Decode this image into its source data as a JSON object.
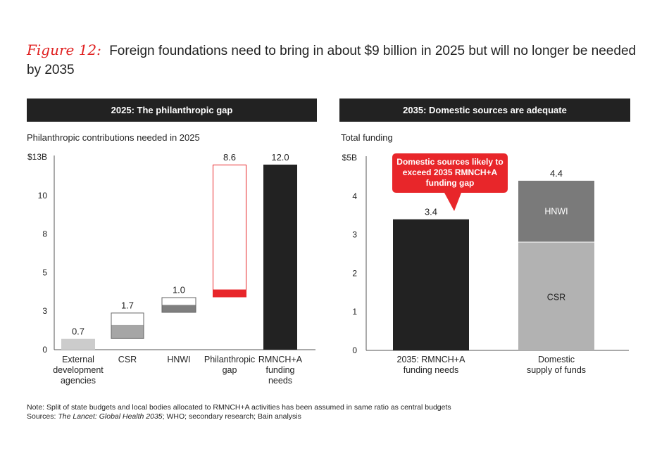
{
  "figure": {
    "label": "Figure 12:",
    "title": "Foreign foundations need to bring in about $9 billion in 2025 but will no longer be needed by 2035"
  },
  "panels": {
    "left": {
      "header": "2025: The philanthropic gap",
      "subtitle": "Philanthropic contributions needed in 2025"
    },
    "right": {
      "header": "2035: Domestic sources are adequate",
      "subtitle": "Total funding",
      "callout": [
        "Domestic sources likely to",
        "exceed 2035 RMNCH+A",
        "funding gap"
      ]
    }
  },
  "colors": {
    "dark": "#222222",
    "light_gray": "#cccccc",
    "mid_gray": "#a6a6a6",
    "dark_gray": "#7f7f7f",
    "accent_red": "#e8262a",
    "stack_top": "#7a7a7a",
    "stack_bottom": "#b2b2b2"
  },
  "chart_data": [
    {
      "type": "bar",
      "subtype": "waterfall",
      "title": "2025: The philanthropic gap",
      "ylabel": "Philanthropic contributions needed in 2025",
      "y_ticks": [
        "0",
        "3",
        "5",
        "8",
        "10",
        "$13B"
      ],
      "y_tick_values": [
        0,
        2.5,
        5,
        7.5,
        10,
        12.5
      ],
      "ylim": [
        0,
        12.5
      ],
      "categories": [
        [
          "External",
          "development",
          "agencies"
        ],
        [
          "CSR"
        ],
        [
          "HNWI"
        ],
        [
          "Philanthropic",
          "gap"
        ],
        [
          "RMNCH+A",
          "funding",
          "needs"
        ]
      ],
      "bars": [
        {
          "base": 0,
          "value": 0.7,
          "label": "0.7",
          "style": "light",
          "fill_range": [
            0,
            0.7
          ]
        },
        {
          "base": 0.7,
          "value": 1.7,
          "label": "1.7",
          "style": "outline_partial",
          "fill_range": [
            0.7,
            1.6
          ]
        },
        {
          "base": 2.4,
          "value": 1.0,
          "label": "1.0",
          "style": "outline_partial",
          "fill_range": [
            2.4,
            2.9
          ]
        },
        {
          "base": 3.4,
          "value": 8.6,
          "label": "8.6",
          "style": "red_outline",
          "fill_range": [
            3.4,
            3.9
          ]
        },
        {
          "base": 0,
          "value": 12.0,
          "label": "12.0",
          "style": "dark",
          "fill_range": [
            0,
            12.0
          ]
        }
      ],
      "grid": false
    },
    {
      "type": "bar",
      "subtype": "stacked",
      "title": "2035: Domestic sources are adequate",
      "ylabel": "Total funding",
      "y_ticks": [
        "0",
        "1",
        "2",
        "3",
        "4",
        "$5B"
      ],
      "y_tick_values": [
        0,
        1,
        2,
        3,
        4,
        5
      ],
      "ylim": [
        0,
        5
      ],
      "categories": [
        [
          "2035: RMNCH+A",
          "funding needs"
        ],
        [
          "Domestic",
          "supply of funds"
        ]
      ],
      "series": [
        {
          "name": "CSR",
          "values": [
            null,
            2.8
          ]
        },
        {
          "name": "HNWI",
          "values": [
            null,
            1.6
          ]
        },
        {
          "name": "RMNCH+A funding needs",
          "values": [
            3.4,
            null
          ]
        }
      ],
      "totals": [
        "3.4",
        "4.4"
      ],
      "grid": false
    }
  ],
  "notes": {
    "note": "Note: Split of state budgets and local bodies allocated to RMNCH+A activities has been assumed in same ratio as central budgets",
    "sources_prefix": "Sources: ",
    "sources_italic": "The Lancet: Global Health 2035",
    "sources_rest": "; WHO; secondary research; Bain analysis"
  }
}
